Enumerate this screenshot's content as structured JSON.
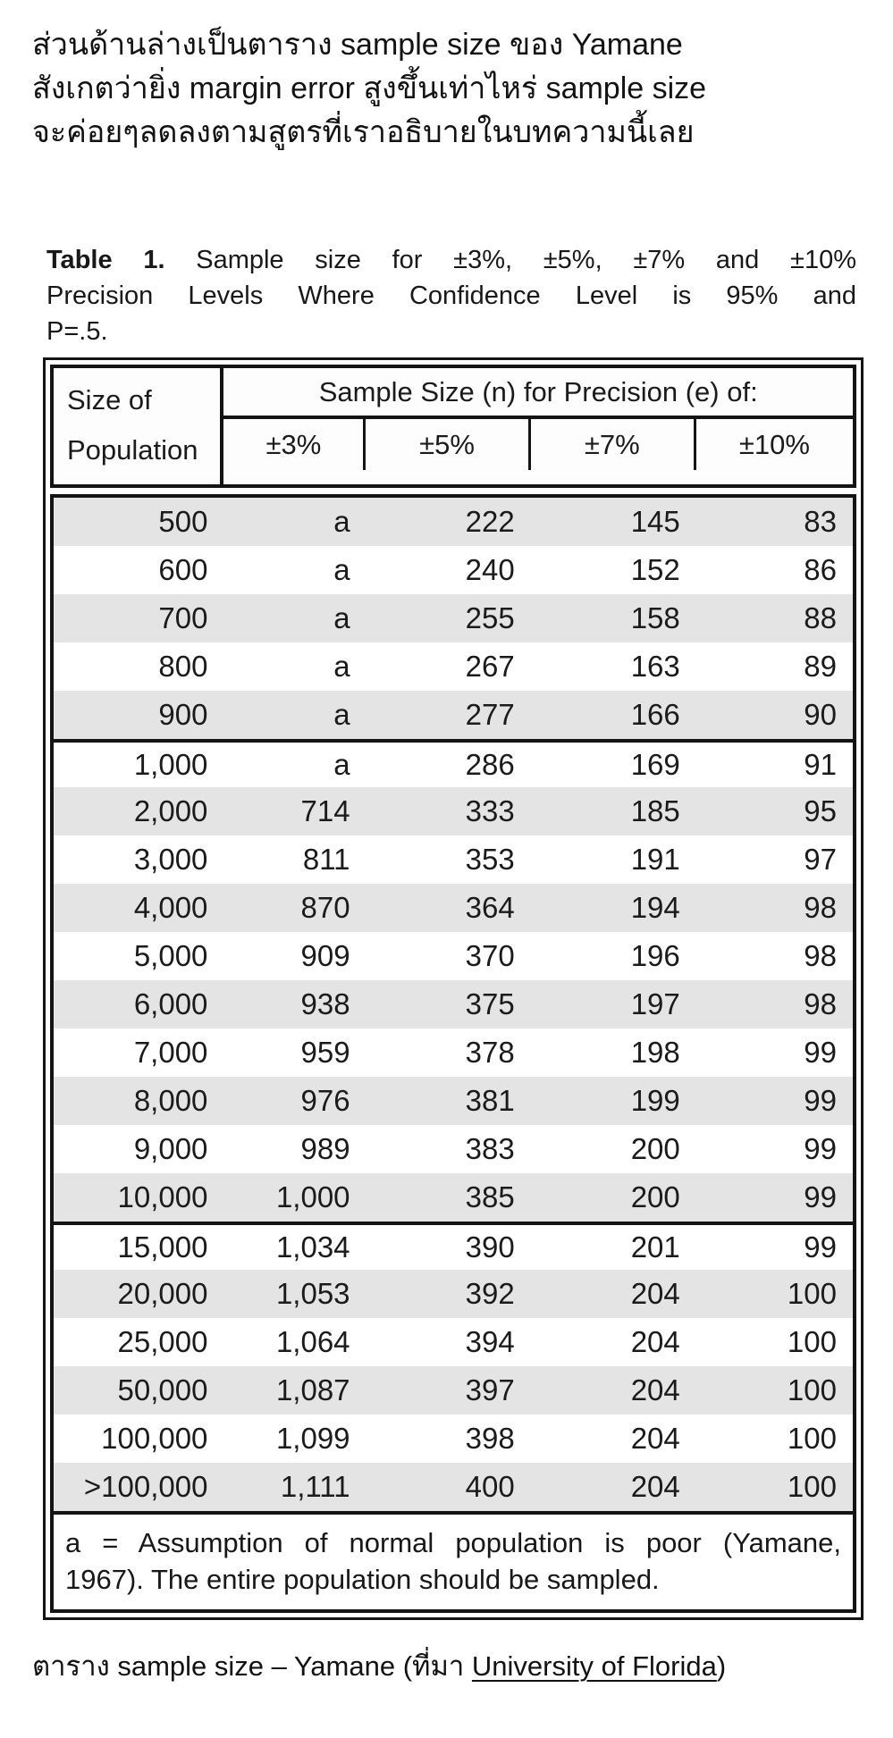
{
  "intro": {
    "lines": [
      "ส่วนด้านล่างเป็นตาราง sample size ของ Yamane",
      "สังเกตว่ายิ่ง margin error สูงขึ้นเท่าไหร่ sample size",
      "จะค่อยๆลดลงตามสูตรที่เราอธิบายในบทความนี้เลย"
    ]
  },
  "table": {
    "title": {
      "label": "Table 1.",
      "line1_rest": "Sample size for ±3%, ±5%, ±7% and ±10%",
      "line2": "Precision Levels Where Confidence Level is 95% and",
      "line3": "P=.5."
    },
    "header": {
      "col0_line1": "Size of",
      "col0_line2": "Population",
      "group": "Sample Size (n) for Precision (e) of:",
      "precision_cols": [
        "±3%",
        "±5%",
        "±7%",
        "±10%"
      ]
    },
    "rows": [
      [
        "500",
        "a",
        "222",
        "145",
        "83"
      ],
      [
        "600",
        "a",
        "240",
        "152",
        "86"
      ],
      [
        "700",
        "a",
        "255",
        "158",
        "88"
      ],
      [
        "800",
        "a",
        "267",
        "163",
        "89"
      ],
      [
        "900",
        "a",
        "277",
        "166",
        "90"
      ],
      [
        "1,000",
        "a",
        "286",
        "169",
        "91"
      ],
      [
        "2,000",
        "714",
        "333",
        "185",
        "95"
      ],
      [
        "3,000",
        "811",
        "353",
        "191",
        "97"
      ],
      [
        "4,000",
        "870",
        "364",
        "194",
        "98"
      ],
      [
        "5,000",
        "909",
        "370",
        "196",
        "98"
      ],
      [
        "6,000",
        "938",
        "375",
        "197",
        "98"
      ],
      [
        "7,000",
        "959",
        "378",
        "198",
        "99"
      ],
      [
        "8,000",
        "976",
        "381",
        "199",
        "99"
      ],
      [
        "9,000",
        "989",
        "383",
        "200",
        "99"
      ],
      [
        "10,000",
        "1,000",
        "385",
        "200",
        "99"
      ],
      [
        "15,000",
        "1,034",
        "390",
        "201",
        "99"
      ],
      [
        "20,000",
        "1,053",
        "392",
        "204",
        "100"
      ],
      [
        "25,000",
        "1,064",
        "394",
        "204",
        "100"
      ],
      [
        "50,000",
        "1,087",
        "397",
        "204",
        "100"
      ],
      [
        "100,000",
        "1,099",
        "398",
        "204",
        "100"
      ],
      [
        ">100,000",
        "1,111",
        "400",
        "204",
        "100"
      ]
    ],
    "group_breaks": [
      5,
      15
    ],
    "footnote_lines": [
      "a = Assumption of normal population is poor (Yamane,",
      "1967).  The entire population should be sampled."
    ],
    "stripe_color": "#e4e4e4",
    "border_color": "#141414"
  },
  "caption": {
    "prefix": "ตาราง sample size – Yamane (ที่มา ",
    "link": "University of Florida",
    "suffix": ")"
  }
}
